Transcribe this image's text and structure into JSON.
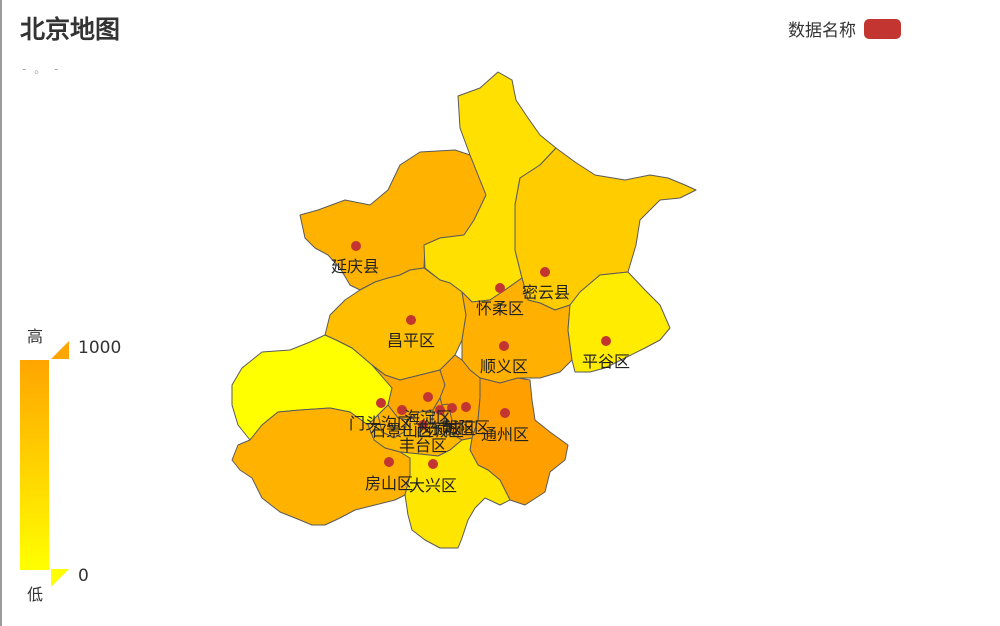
{
  "title": "北京地图",
  "subtitle": "- 。 -",
  "legend": {
    "label": "数据名称",
    "color": "#c23531"
  },
  "visual_map": {
    "high_text": "高",
    "low_text": "低",
    "max_label": "1000",
    "min_label": "0",
    "color_high": "#ffa500",
    "color_low": "#ffff00"
  },
  "districts": [
    {
      "key": "yanqing",
      "name": "延庆县"
    },
    {
      "key": "huairou",
      "name": "怀柔区"
    },
    {
      "key": "miyun",
      "name": "密云县"
    },
    {
      "key": "changping",
      "name": "昌平区"
    },
    {
      "key": "shunyi",
      "name": "顺义区"
    },
    {
      "key": "pinggu",
      "name": "平谷区"
    },
    {
      "key": "mentougou",
      "name": "门头沟区"
    },
    {
      "key": "haidian",
      "name": "海淀区"
    },
    {
      "key": "shijingshan",
      "name": "石景山区"
    },
    {
      "key": "xicheng",
      "name": "西城区"
    },
    {
      "key": "dongcheng",
      "name": "东城区"
    },
    {
      "key": "chaoyang",
      "name": "朝阳区"
    },
    {
      "key": "fengtai",
      "name": "丰台区"
    },
    {
      "key": "tongzhou",
      "name": "通州区"
    },
    {
      "key": "fangshan",
      "name": "房山区"
    },
    {
      "key": "daxing",
      "name": "大兴区"
    }
  ]
}
